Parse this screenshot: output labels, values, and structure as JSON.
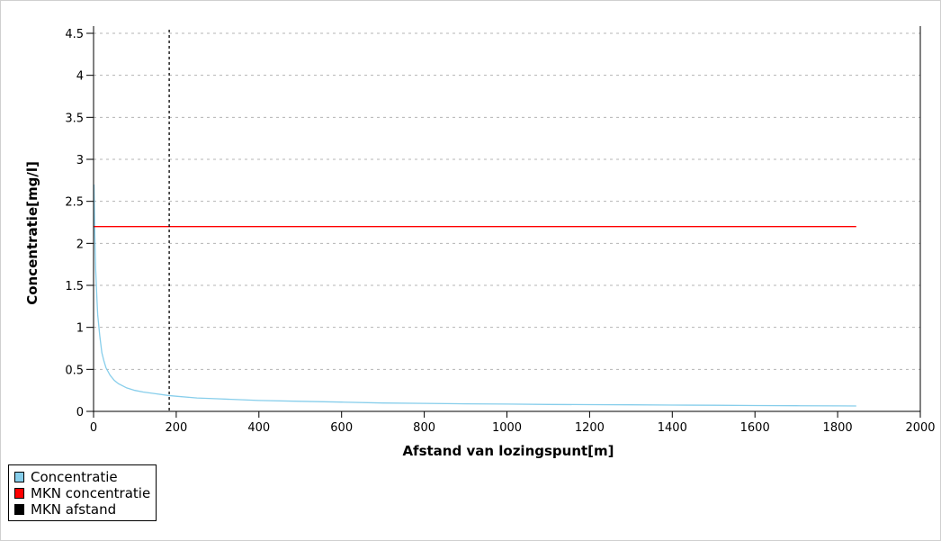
{
  "chart_data": {
    "type": "line",
    "title": "",
    "xlabel": "Afstand van lozingspunt[m]",
    "ylabel": "Concentratie[mg/l]",
    "xlim": [
      0,
      2000
    ],
    "ylim": [
      0,
      4.5
    ],
    "x_ticks": [
      0,
      200,
      400,
      600,
      800,
      1000,
      1200,
      1400,
      1600,
      1800,
      2000
    ],
    "y_ticks": [
      0,
      0.5,
      1,
      1.5,
      2,
      2.5,
      3,
      3.5,
      4,
      4.5
    ],
    "x_tick_labels": [
      "0",
      "200",
      "400",
      "600",
      "800",
      "1000",
      "1200",
      "1400",
      "1600",
      "1800",
      "2000"
    ],
    "y_tick_labels": [
      "0",
      "0.5",
      "1",
      "1.5",
      "2",
      "2.5",
      "3",
      "3.5",
      "4",
      "4.5"
    ],
    "grid": "horizontal-dashed",
    "legend_position": "bottom-left",
    "series": [
      {
        "name": "Concentratie",
        "color": "#87CEEB",
        "x": [
          1,
          3,
          5,
          8,
          10,
          15,
          20,
          25,
          30,
          40,
          50,
          60,
          80,
          100,
          120,
          150,
          180,
          200,
          250,
          300,
          400,
          500,
          600,
          700,
          800,
          900,
          1000,
          1100,
          1200,
          1300,
          1400,
          1500,
          1600,
          1700,
          1800,
          1845
        ],
        "y": [
          2.7,
          2.1,
          1.7,
          1.35,
          1.15,
          0.9,
          0.7,
          0.6,
          0.52,
          0.43,
          0.37,
          0.33,
          0.28,
          0.25,
          0.23,
          0.21,
          0.19,
          0.18,
          0.16,
          0.15,
          0.13,
          0.12,
          0.11,
          0.1,
          0.095,
          0.09,
          0.087,
          0.083,
          0.08,
          0.078,
          0.075,
          0.073,
          0.07,
          0.067,
          0.065,
          0.064
        ]
      },
      {
        "name": "MKN concentratie",
        "color": "#FF0000",
        "x": [
          0,
          1845
        ],
        "y": [
          2.2,
          2.2
        ]
      }
    ],
    "vlines": [
      {
        "name": "MKN afstand",
        "color": "#000000",
        "x": 183,
        "style": "dashed"
      }
    ],
    "legend": [
      {
        "label": "Concentratie",
        "color": "#87CEEB"
      },
      {
        "label": "MKN concentratie",
        "color": "#FF0000"
      },
      {
        "label": "MKN afstand",
        "color": "#000000"
      }
    ]
  }
}
